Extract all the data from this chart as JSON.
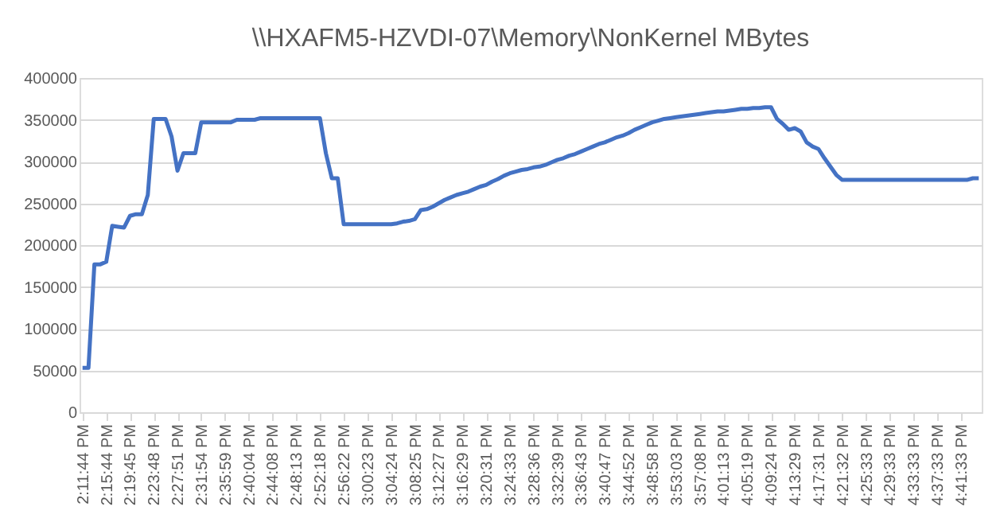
{
  "chart_data": {
    "type": "line",
    "title": "\\\\HXAFM5-HZVDI-07\\Memory\\NonKernel  MBytes",
    "categories": [
      "2:11:44 PM",
      null,
      null,
      null,
      "2:15:44 PM",
      null,
      null,
      null,
      "2:19:45 PM",
      null,
      null,
      null,
      "2:23:48 PM",
      null,
      null,
      null,
      "2:27:51 PM",
      null,
      null,
      null,
      "2:31:54 PM",
      null,
      null,
      null,
      "2:35:59 PM",
      null,
      null,
      null,
      "2:40:04 PM",
      null,
      null,
      null,
      "2:44:08 PM",
      null,
      null,
      null,
      "2:48:13 PM",
      null,
      null,
      null,
      "2:52:18 PM",
      null,
      null,
      null,
      "2:56:22 PM",
      null,
      null,
      null,
      "3:00:23 PM",
      null,
      null,
      null,
      "3:04:24 PM",
      null,
      null,
      null,
      "3:08:25 PM",
      null,
      null,
      null,
      "3:12:27 PM",
      null,
      null,
      null,
      "3:16:29 PM",
      null,
      null,
      null,
      "3:20:31 PM",
      null,
      null,
      null,
      "3:24:33 PM",
      null,
      null,
      null,
      "3:28:36 PM",
      null,
      null,
      null,
      "3:32:39 PM",
      null,
      null,
      null,
      "3:36:43 PM",
      null,
      null,
      null,
      "3:40:47 PM",
      null,
      null,
      null,
      "3:44:52 PM",
      null,
      null,
      null,
      "3:48:58 PM",
      null,
      null,
      null,
      "3:53:03 PM",
      null,
      null,
      null,
      "3:57:08 PM",
      null,
      null,
      null,
      "4:01:13 PM",
      null,
      null,
      null,
      "4:05:19 PM",
      null,
      null,
      null,
      "4:09:24 PM",
      null,
      null,
      null,
      "4:13:29 PM",
      null,
      null,
      null,
      "4:17:31 PM",
      null,
      null,
      null,
      "4:21:32 PM",
      null,
      null,
      null,
      "4:25:33 PM",
      null,
      null,
      null,
      "4:29:33 PM",
      null,
      null,
      null,
      "4:33:33 PM",
      null,
      null,
      null,
      "4:37:33 PM",
      null,
      null,
      null,
      "4:41:33 PM",
      null,
      null,
      null
    ],
    "series": [
      {
        "color": "#4472c4",
        "values": [
          53000,
          53000,
          177000,
          177000,
          180000,
          223000,
          222000,
          221000,
          235000,
          237000,
          237000,
          260000,
          351000,
          351000,
          351000,
          330000,
          289000,
          310000,
          310000,
          310000,
          347000,
          347000,
          347000,
          347000,
          347000,
          347000,
          350000,
          350000,
          350000,
          350000,
          352000,
          352000,
          352000,
          352000,
          352000,
          352000,
          352000,
          352000,
          352000,
          352000,
          352000,
          310000,
          280000,
          280000,
          225000,
          225000,
          225000,
          225000,
          225000,
          225000,
          225000,
          225000,
          225000,
          226000,
          228000,
          229000,
          231000,
          242000,
          243000,
          246000,
          250000,
          254000,
          257000,
          260000,
          262000,
          264000,
          267000,
          270000,
          272000,
          276000,
          279000,
          283000,
          286000,
          288000,
          290000,
          291000,
          293000,
          294000,
          296000,
          299000,
          302000,
          304000,
          307000,
          309000,
          312000,
          315000,
          318000,
          321000,
          323000,
          326000,
          329000,
          331000,
          334000,
          338000,
          341000,
          344000,
          347000,
          349000,
          351000,
          352000,
          353000,
          354000,
          355000,
          356000,
          357000,
          358000,
          359000,
          360000,
          360000,
          361000,
          362000,
          363000,
          363000,
          364000,
          364000,
          365000,
          365000,
          351000,
          345000,
          338000,
          340000,
          336000,
          323000,
          318000,
          315000,
          304000,
          294000,
          284000,
          278000,
          278000,
          278000,
          278000,
          278000,
          278000,
          278000,
          278000,
          278000,
          278000,
          278000,
          278000,
          278000,
          278000,
          278000,
          278000,
          278000,
          278000,
          278000,
          278000,
          278000,
          278000,
          280000,
          280000
        ]
      }
    ],
    "ylim": [
      0,
      400000
    ],
    "yticks": [
      0,
      50000,
      100000,
      150000,
      200000,
      250000,
      300000,
      350000,
      400000
    ],
    "grid": "y",
    "marker": "none",
    "line_style": "solid"
  }
}
